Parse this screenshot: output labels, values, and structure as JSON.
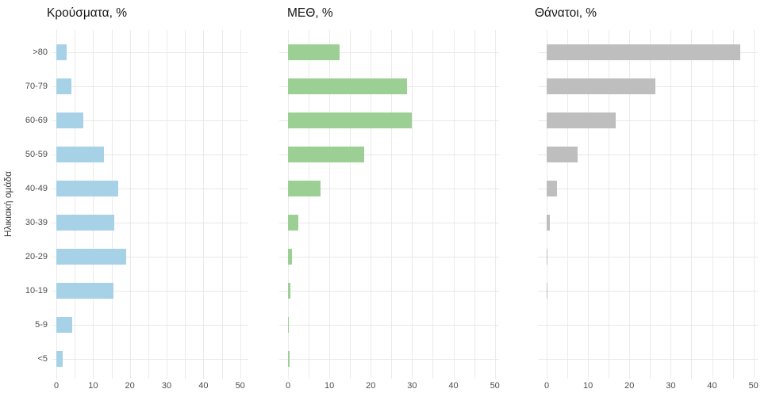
{
  "figure": {
    "y_axis_title": "Ηλικιακή ομάδα",
    "age_groups": [
      ">80",
      "70-79",
      "60-69",
      "50-59",
      "40-49",
      "30-39",
      "20-29",
      "10-19",
      "5-9",
      "<5"
    ],
    "x_ticks": [
      0,
      10,
      20,
      30,
      40,
      50
    ],
    "grid_color": "#ebebeb",
    "tick_label_color": "#4d4d4d",
    "title_color": "#151515"
  },
  "chart_data": [
    {
      "type": "bar",
      "orientation": "horizontal",
      "title": "Κρούσματα, %",
      "categories": [
        ">80",
        "70-79",
        "60-69",
        "50-59",
        "40-49",
        "30-39",
        "20-29",
        "10-19",
        "5-9",
        "<5"
      ],
      "values": [
        2.8,
        4.1,
        7.3,
        13.0,
        16.8,
        15.8,
        19.0,
        15.6,
        4.3,
        1.7
      ],
      "color": "#a6d1e6",
      "xlim": [
        0,
        50
      ],
      "grid": true,
      "legend": "none"
    },
    {
      "type": "bar",
      "orientation": "horizontal",
      "title": "ΜΕΘ, %",
      "categories": [
        ">80",
        "70-79",
        "60-69",
        "50-59",
        "40-49",
        "30-39",
        "20-29",
        "10-19",
        "5-9",
        "<5"
      ],
      "values": [
        12.4,
        28.8,
        30.0,
        18.5,
        7.8,
        2.4,
        0.9,
        0.5,
        0.1,
        0.3
      ],
      "color": "#9ccf94",
      "xlim": [
        0,
        50
      ],
      "grid": true,
      "legend": "none"
    },
    {
      "type": "bar",
      "orientation": "horizontal",
      "title": "Θάνατοι, %",
      "categories": [
        ">80",
        "70-79",
        "60-69",
        "50-59",
        "40-49",
        "30-39",
        "20-29",
        "10-19",
        "5-9",
        "<5"
      ],
      "values": [
        46.8,
        26.3,
        16.7,
        7.4,
        2.5,
        0.7,
        0.2,
        0.2,
        0,
        0
      ],
      "color": "#bebebe",
      "xlim": [
        0,
        50
      ],
      "grid": true,
      "legend": "none"
    }
  ]
}
